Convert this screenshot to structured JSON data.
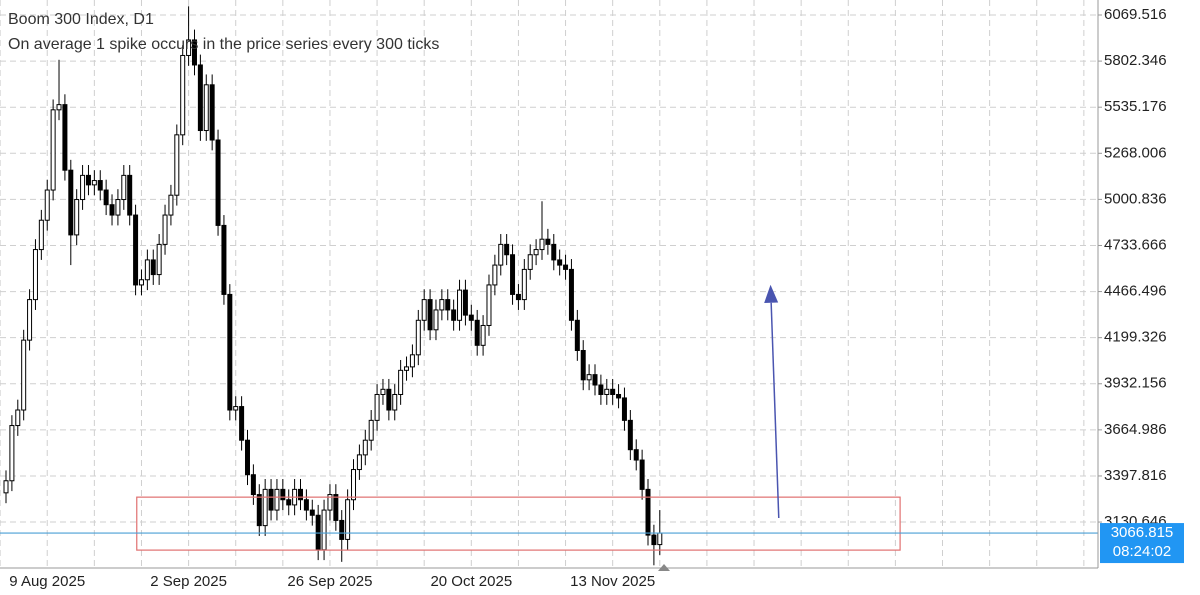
{
  "chart_data": {
    "type": "candlestick",
    "title": "Boom 300 Index, D1",
    "subtitle": "On average 1 spike occurs in the price series every 300 ticks",
    "categories": [
      null,
      null,
      null,
      null,
      null,
      null,
      null,
      "9 Aug 2025",
      null,
      null,
      null,
      null,
      null,
      null,
      null,
      null,
      null,
      null,
      null,
      null,
      null,
      null,
      null,
      null,
      null,
      null,
      null,
      null,
      null,
      null,
      null,
      "2 Sep 2025",
      null,
      null,
      null,
      null,
      null,
      null,
      null,
      null,
      null,
      null,
      null,
      null,
      null,
      null,
      null,
      null,
      null,
      null,
      null,
      null,
      null,
      null,
      null,
      "26 Sep 2025",
      null,
      null,
      null,
      null,
      null,
      null,
      null,
      null,
      null,
      null,
      null,
      null,
      null,
      null,
      null,
      null,
      null,
      null,
      null,
      null,
      null,
      null,
      null,
      "20 Oct 2025",
      null,
      null,
      null,
      null,
      null,
      null,
      null,
      null,
      null,
      null,
      null,
      null,
      null,
      null,
      null,
      null,
      null,
      null,
      null,
      null,
      null,
      null,
      null,
      "13 Nov 2025",
      null,
      null,
      null,
      null,
      null,
      null,
      null,
      null
    ],
    "open": [
      3300,
      3370,
      3690,
      3780,
      4185,
      4420,
      4710,
      4880,
      5055,
      5520,
      5550,
      5170,
      4795,
      5000,
      5140,
      5085,
      5110,
      5055,
      4970,
      4910,
      5000,
      5140,
      4910,
      4505,
      4535,
      4650,
      4565,
      4740,
      4910,
      5025,
      5375,
      5835,
      5925,
      5780,
      5400,
      5665,
      5345,
      4850,
      4450,
      3780,
      3800,
      3605,
      3405,
      3290,
      3110,
      3320,
      3200,
      3320,
      3260,
      3230,
      3320,
      3260,
      3200,
      3170,
      2970,
      3200,
      3290,
      3140,
      3030,
      3260,
      3435,
      3520,
      3605,
      3720,
      3870,
      3900,
      3780,
      3870,
      4010,
      4030,
      4100,
      4300,
      4420,
      4245,
      4360,
      4420,
      4360,
      4300,
      4475,
      4330,
      4300,
      4155,
      4270,
      4505,
      4620,
      4740,
      4680,
      4450,
      4420,
      4595,
      4680,
      4710,
      4770,
      4740,
      4650,
      4620,
      4595,
      4300,
      4125,
      3955,
      3985,
      3925,
      3870,
      3900,
      3870,
      3850,
      3720,
      3550,
      3490,
      3320,
      3055,
      3000
    ],
    "high": [
      3430,
      3750,
      3840,
      4245,
      4480,
      4770,
      4940,
      5115,
      5580,
      5810,
      5610,
      5230,
      5060,
      5200,
      5200,
      5170,
      5170,
      5115,
      5030,
      5060,
      5200,
      5200,
      4970,
      4595,
      4710,
      4710,
      4800,
      4970,
      5085,
      5435,
      5895,
      6120,
      5985,
      5840,
      5725,
      5725,
      5405,
      4910,
      4510,
      3860,
      3860,
      3665,
      3465,
      3350,
      3380,
      3380,
      3380,
      3380,
      3320,
      3380,
      3380,
      3320,
      3260,
      3230,
      3260,
      3350,
      3350,
      3200,
      3320,
      3495,
      3580,
      3665,
      3780,
      3930,
      3960,
      3960,
      3930,
      4070,
      4090,
      4160,
      4360,
      4480,
      4480,
      4420,
      4480,
      4480,
      4420,
      4535,
      4535,
      4390,
      4360,
      4330,
      4565,
      4680,
      4800,
      4800,
      4740,
      4510,
      4655,
      4740,
      4770,
      4990,
      4830,
      4800,
      4710,
      4680,
      4655,
      4360,
      4185,
      4045,
      4045,
      3985,
      3960,
      3960,
      3930,
      3910,
      3780,
      3610,
      3550,
      3380,
      3115,
      3200
    ],
    "low": [
      3240,
      3310,
      3630,
      3720,
      4125,
      4360,
      4650,
      4820,
      4995,
      5460,
      5110,
      4620,
      4735,
      4940,
      5025,
      5025,
      4995,
      4910,
      4850,
      4850,
      4940,
      4850,
      4445,
      4445,
      4475,
      4505,
      4505,
      4680,
      4850,
      4965,
      5315,
      5775,
      5720,
      5340,
      5340,
      5285,
      4790,
      4390,
      3720,
      3720,
      3545,
      3345,
      3230,
      3050,
      3050,
      3140,
      3140,
      3200,
      3170,
      3170,
      3200,
      3140,
      3110,
      2910,
      2910,
      3140,
      3080,
      2900,
      2970,
      3200,
      3375,
      3460,
      3545,
      3660,
      3810,
      3720,
      3720,
      3810,
      3950,
      3970,
      4040,
      4240,
      4185,
      4185,
      4300,
      4300,
      4240,
      4240,
      4270,
      4240,
      4095,
      4095,
      4210,
      4445,
      4560,
      4620,
      4390,
      4360,
      4360,
      4535,
      4620,
      4650,
      4680,
      4590,
      4560,
      4535,
      4240,
      4065,
      3895,
      3895,
      3865,
      3810,
      3810,
      3810,
      3790,
      3660,
      3490,
      3430,
      3260,
      2995,
      2880,
      2940
    ],
    "close": [
      3370,
      3690,
      3780,
      4185,
      4420,
      4710,
      4880,
      5055,
      5520,
      5550,
      5170,
      4795,
      5000,
      5140,
      5085,
      5110,
      5055,
      4970,
      4910,
      5000,
      5140,
      4910,
      4505,
      4535,
      4650,
      4565,
      4740,
      4910,
      5025,
      5375,
      5835,
      5925,
      5780,
      5400,
      5665,
      5345,
      4850,
      4450,
      3780,
      3800,
      3605,
      3405,
      3290,
      3110,
      3320,
      3200,
      3320,
      3260,
      3230,
      3320,
      3260,
      3200,
      3170,
      2970,
      3200,
      3290,
      3140,
      3030,
      3260,
      3435,
      3520,
      3605,
      3720,
      3870,
      3900,
      3780,
      3870,
      4010,
      4030,
      4100,
      4300,
      4420,
      4245,
      4360,
      4420,
      4360,
      4300,
      4475,
      4330,
      4300,
      4155,
      4270,
      4505,
      4620,
      4740,
      4680,
      4450,
      4420,
      4595,
      4680,
      4710,
      4770,
      4740,
      4650,
      4620,
      4595,
      4300,
      4125,
      3955,
      3985,
      3925,
      3870,
      3900,
      3870,
      3850,
      3720,
      3550,
      3490,
      3320,
      3055,
      3000,
      3066.815
    ],
    "up_color": "#ffffff",
    "down_color": "#000000",
    "xlim": [
      -1.02,
      185.4
    ],
    "ylim": [
      2864.3,
      6156.5
    ],
    "yticks": [
      3130.646,
      3397.816,
      3664.986,
      3932.156,
      4199.326,
      4466.496,
      4733.666,
      5000.836,
      5268.006,
      5535.176,
      5802.346,
      6069.516
    ],
    "grid": true,
    "current_price": 3066.815,
    "countdown": "08:24:02",
    "price_line_color": "#4a9fd5",
    "zone": {
      "x0": 22.2,
      "x1": 151.8,
      "y0": 2968,
      "y1": 3275,
      "color": "#e07070"
    },
    "arrow": {
      "x0": 131.2,
      "y0": 3154,
      "x1": 129.8,
      "y1": 4506,
      "color": "#4a55b0"
    }
  }
}
